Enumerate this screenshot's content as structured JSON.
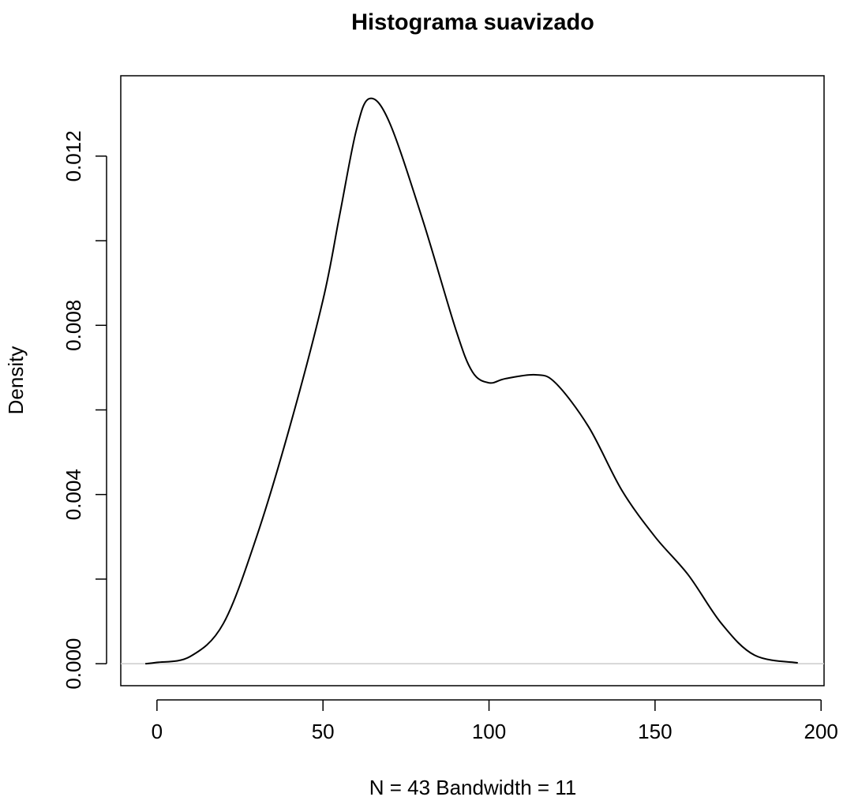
{
  "chart_data": {
    "type": "line",
    "title": "Histograma suavizado",
    "xlabel": "N = 43   Bandwidth = 11",
    "ylabel": "Density",
    "x": [
      -3.5,
      0,
      10,
      20,
      30,
      40,
      50,
      55,
      60,
      64,
      70,
      80,
      90,
      95,
      100,
      105,
      114,
      120,
      130,
      140,
      150,
      160,
      170,
      180,
      193
    ],
    "series": [
      {
        "color": "#000000",
        "values": [
          0,
          3e-05,
          0.00017,
          0.00095,
          0.003,
          0.0056,
          0.0086,
          0.0106,
          0.0126,
          0.01336,
          0.0128,
          0.0105,
          0.0079,
          0.0069,
          0.00664,
          0.00674,
          0.00683,
          0.00664,
          0.0056,
          0.0041,
          0.003,
          0.0021,
          0.00095,
          0.0002,
          2e-05
        ]
      }
    ],
    "xlim": [
      -10.9,
      200.9
    ],
    "xticks": [
      0,
      50,
      100,
      150,
      200
    ],
    "ylim": [
      -0.00052,
      0.0139
    ],
    "yticks": [
      {
        "value": 0,
        "label": "0.000"
      },
      {
        "value": 0.002,
        "label": null
      },
      {
        "value": 0.004,
        "label": "0.004"
      },
      {
        "value": 0.006,
        "label": null
      },
      {
        "value": 0.008,
        "label": "0.008"
      },
      {
        "value": 0.01,
        "label": null
      },
      {
        "value": 0.012,
        "label": "0.012"
      }
    ],
    "zero_line": true,
    "zero_line_color": "#cccccc",
    "grid": false
  }
}
